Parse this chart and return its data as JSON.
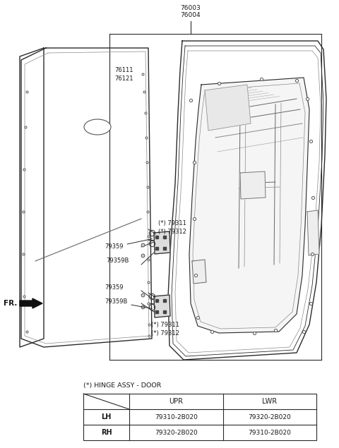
{
  "bg_color": "#ffffff",
  "line_color": "#2a2a2a",
  "label_color": "#1a1a1a",
  "part_76003": "76003",
  "part_76004": "76004",
  "part_76111": "76111",
  "part_76121": "76121",
  "part_79311": "(*) 79311",
  "part_79312": "(*) 79312",
  "part_79359": "79359",
  "part_79359B": "79359B",
  "table_title": "(*) HINGE ASSY - DOOR",
  "col_headers": [
    "UPR",
    "LWR"
  ],
  "row_headers": [
    "LH",
    "RH"
  ],
  "cells": [
    [
      "79310-2B020",
      "79320-2B020"
    ],
    [
      "79320-2B020",
      "79310-2B020"
    ]
  ]
}
